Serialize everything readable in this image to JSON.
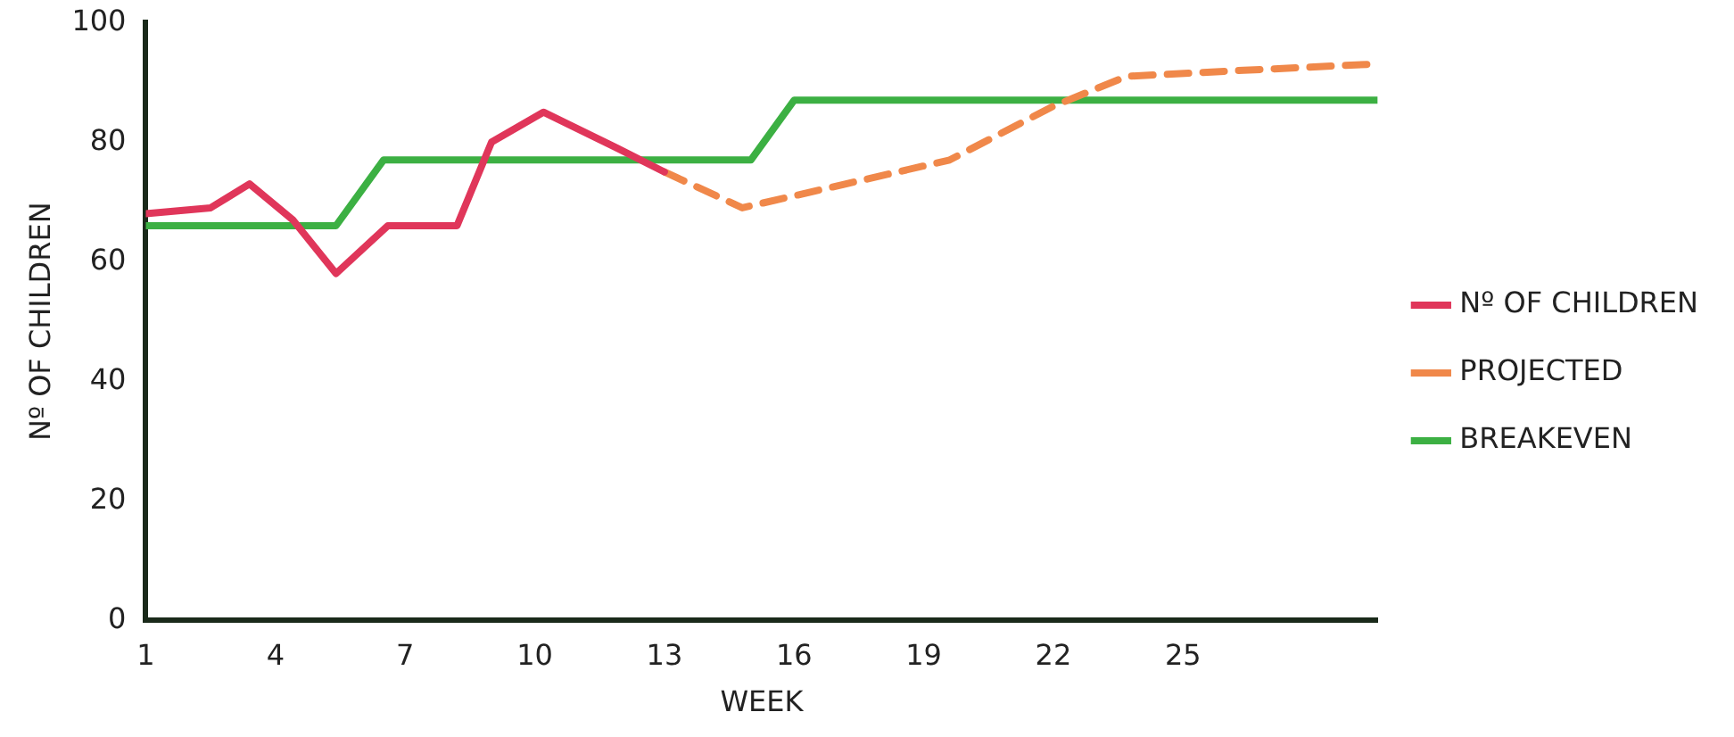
{
  "chart_data": {
    "type": "line",
    "xlabel": "WEEK",
    "ylabel": "Nº OF CHILDREN",
    "xlim": [
      1,
      29.5
    ],
    "xticks": [
      1,
      4,
      7,
      10,
      13,
      16,
      19,
      22,
      25
    ],
    "ylim": [
      0,
      100
    ],
    "yticks": [
      0,
      20,
      40,
      60,
      80,
      100
    ],
    "grid": false,
    "legend": "right",
    "marker": "none",
    "series": [
      {
        "name": "Nº OF CHILDREN",
        "color": "#e0365a",
        "line_style": "solid",
        "x": [
          1,
          2.5,
          3.4,
          4.4,
          5.4,
          6.6,
          8.2,
          9,
          10.2,
          11.9,
          13
        ],
        "values": [
          68,
          69,
          73,
          67,
          58,
          66,
          66,
          80,
          85,
          79,
          75
        ]
      },
      {
        "name": "PROJECTED",
        "color": "#f0884a",
        "line_style": "dashed",
        "x": [
          13,
          14.8,
          17.2,
          19.6,
          22,
          23.7,
          26.4,
          29.3
        ],
        "values": [
          75,
          69,
          73,
          77,
          86,
          91,
          92,
          93
        ]
      },
      {
        "name": "BREAKEVEN",
        "color": "#3cb043",
        "line_style": "solid",
        "x": [
          1,
          5.4,
          6.5,
          15,
          16,
          29.5
        ],
        "values": [
          66,
          66,
          77,
          77,
          87,
          87
        ]
      }
    ]
  }
}
